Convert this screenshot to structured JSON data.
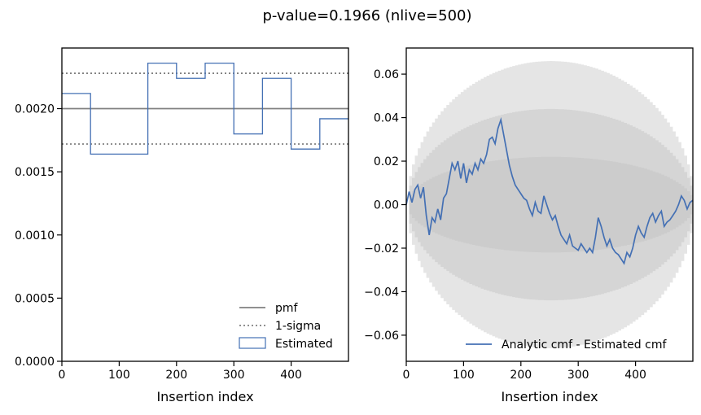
{
  "figure": {
    "title": "p-value=0.1966 (nlive=500)"
  },
  "chart_data": [
    {
      "type": "line",
      "xlabel": "Insertion index",
      "ylabel": "",
      "xlim": [
        0,
        500
      ],
      "ylim": [
        0,
        0.00248
      ],
      "x_ticks": [
        0,
        100,
        200,
        300,
        400
      ],
      "x_tick_labels": [
        "0",
        "100",
        "200",
        "300",
        "400"
      ],
      "y_ticks": [
        0,
        0.0005,
        0.001,
        0.0015,
        0.002
      ],
      "y_tick_labels": [
        "0.0000",
        "0.0005",
        "0.0010",
        "0.0015",
        "0.0020"
      ],
      "grid": false,
      "legend_position": "lower-right",
      "legend": [
        "pmf",
        "1-sigma",
        "Estimated"
      ],
      "pmf": 0.002,
      "sigma_band": [
        0.00172,
        0.00228
      ],
      "series": [
        {
          "name": "Estimated",
          "style": "step",
          "bin_edges": [
            0,
            50,
            100,
            150,
            200,
            250,
            300,
            350,
            400,
            450,
            500
          ],
          "values": [
            0.00212,
            0.00164,
            0.00164,
            0.00236,
            0.00224,
            0.00236,
            0.0018,
            0.00224,
            0.00168,
            0.00192
          ]
        }
      ],
      "colors": {
        "pmf": "#808080",
        "sigma": "#808080",
        "estimated": "#4470b4"
      }
    },
    {
      "type": "line",
      "xlabel": "Insertion index",
      "ylabel": "",
      "xlim": [
        0,
        500
      ],
      "ylim": [
        -0.072,
        0.072
      ],
      "x_ticks": [
        0,
        100,
        200,
        300,
        400
      ],
      "x_tick_labels": [
        "0",
        "100",
        "200",
        "300",
        "400"
      ],
      "y_ticks": [
        -0.06,
        -0.04,
        -0.02,
        0,
        0.02,
        0.04,
        0.06
      ],
      "y_tick_labels": [
        "−0.06",
        "−0.04",
        "−0.02",
        "0.00",
        "0.02",
        "0.04",
        "0.06"
      ],
      "grid": false,
      "legend_position": "lower-right",
      "legend": [
        "Analytic cmf - Estimated cmf"
      ],
      "band_halfwidth_at_center": [
        0.022,
        0.044,
        0.066
      ],
      "series": [
        {
          "name": "Analytic cmf - Estimated cmf",
          "x": [
            0,
            5,
            10,
            15,
            20,
            25,
            30,
            35,
            40,
            45,
            50,
            55,
            60,
            65,
            70,
            75,
            80,
            85,
            90,
            95,
            100,
            105,
            110,
            115,
            120,
            125,
            130,
            135,
            140,
            145,
            150,
            155,
            160,
            165,
            170,
            175,
            180,
            185,
            190,
            195,
            200,
            205,
            210,
            215,
            220,
            225,
            230,
            235,
            240,
            245,
            250,
            255,
            260,
            265,
            270,
            275,
            280,
            285,
            290,
            295,
            300,
            305,
            310,
            315,
            320,
            325,
            330,
            335,
            340,
            345,
            350,
            355,
            360,
            365,
            370,
            375,
            380,
            385,
            390,
            395,
            400,
            405,
            410,
            415,
            420,
            425,
            430,
            435,
            440,
            445,
            450,
            455,
            460,
            465,
            470,
            475,
            480,
            485,
            490,
            495,
            500
          ],
          "y": [
            0.0,
            0.006,
            0.001,
            0.007,
            0.009,
            0.003,
            0.008,
            -0.005,
            -0.014,
            -0.006,
            -0.008,
            -0.002,
            -0.007,
            0.003,
            0.005,
            0.012,
            0.019,
            0.016,
            0.02,
            0.012,
            0.019,
            0.01,
            0.016,
            0.014,
            0.019,
            0.016,
            0.021,
            0.019,
            0.023,
            0.03,
            0.031,
            0.028,
            0.035,
            0.039,
            0.032,
            0.025,
            0.018,
            0.013,
            0.009,
            0.007,
            0.005,
            0.003,
            0.002,
            -0.002,
            -0.005,
            0.001,
            -0.003,
            -0.004,
            0.004,
            0.0,
            -0.004,
            -0.007,
            -0.005,
            -0.01,
            -0.014,
            -0.016,
            -0.018,
            -0.014,
            -0.019,
            -0.02,
            -0.021,
            -0.018,
            -0.02,
            -0.022,
            -0.02,
            -0.022,
            -0.015,
            -0.006,
            -0.01,
            -0.015,
            -0.019,
            -0.016,
            -0.02,
            -0.022,
            -0.023,
            -0.025,
            -0.027,
            -0.022,
            -0.024,
            -0.02,
            -0.014,
            -0.01,
            -0.013,
            -0.015,
            -0.01,
            -0.006,
            -0.004,
            -0.008,
            -0.005,
            -0.003,
            -0.01,
            -0.008,
            -0.007,
            -0.005,
            -0.003,
            0.0,
            0.004,
            0.002,
            -0.002,
            0.001,
            0.002
          ]
        }
      ],
      "colors": {
        "line": "#4470b4",
        "band": "#bebebe"
      }
    }
  ]
}
